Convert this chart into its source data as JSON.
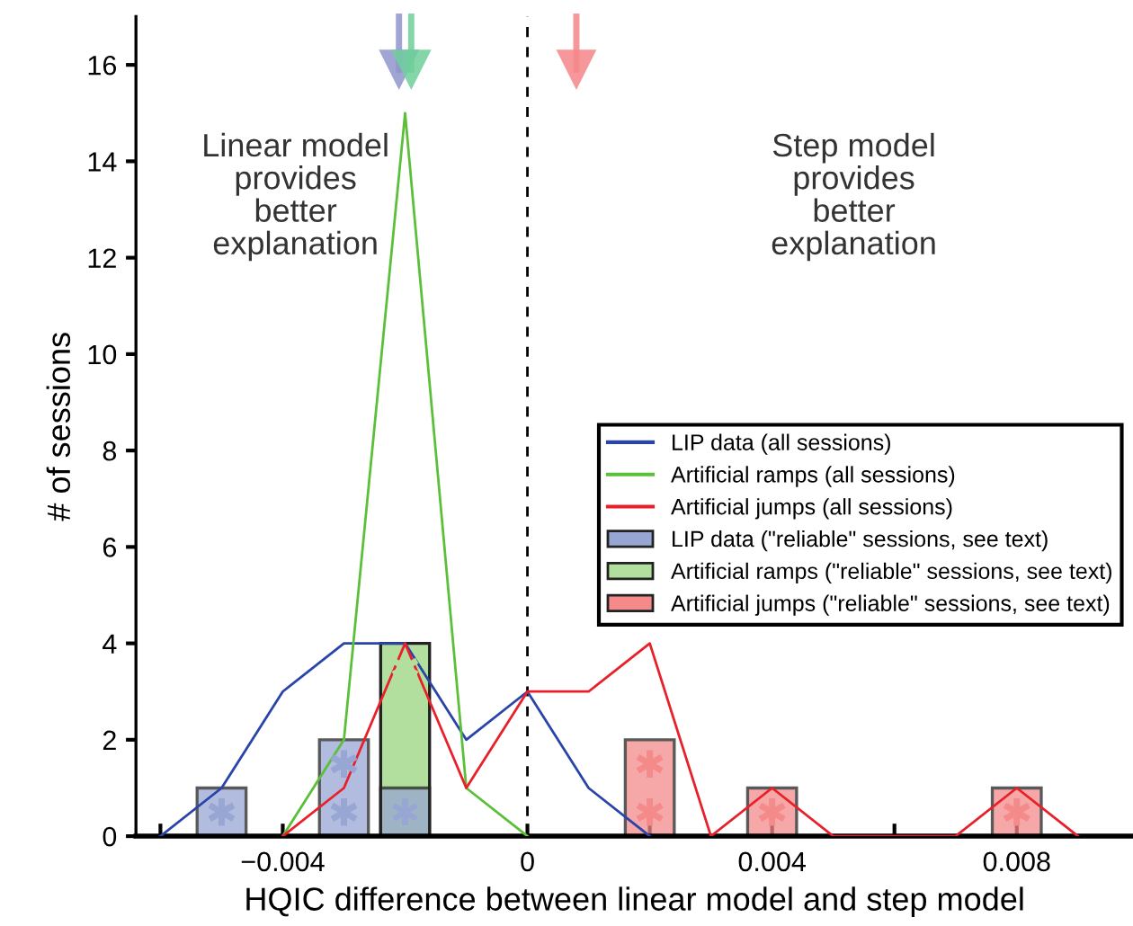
{
  "chart_data": {
    "type": "line",
    "xlabel": "HQIC difference between linear model and step model",
    "ylabel": "# of sessions",
    "xlim": [
      -0.0064,
      0.0099
    ],
    "ylim": [
      0,
      17
    ],
    "xticks": [
      {
        "value": -0.006,
        "label": null
      },
      {
        "value": -0.004,
        "label": "−0.004"
      },
      {
        "value": -0.002,
        "label": null
      },
      0,
      {
        "value": 0.002,
        "label": null
      },
      {
        "value": 0.004,
        "label": "0.004"
      },
      {
        "value": 0.006,
        "label": null
      },
      {
        "value": 0.008,
        "label": "0.008"
      }
    ],
    "yticks": [
      0,
      2,
      4,
      6,
      8,
      10,
      12,
      14,
      16
    ],
    "series": [
      {
        "name": "LIP data (all sessions)",
        "color": "#2a44a8",
        "x": [
          -0.006,
          -0.005,
          -0.004,
          -0.003,
          -0.002,
          -0.001,
          0,
          0.001,
          0.002
        ],
        "values": [
          0,
          1,
          3,
          4,
          4,
          2,
          3,
          1,
          0
        ]
      },
      {
        "name": "Artificial ramps (all sessions)",
        "color": "#5cbf3a",
        "x": [
          -0.004,
          -0.003,
          -0.002,
          -0.001,
          0
        ],
        "values": [
          0,
          2,
          15,
          1,
          0
        ]
      },
      {
        "name": "Artificial jumps (all sessions)",
        "color": "#e8202a",
        "x": [
          -0.004,
          -0.003,
          -0.002,
          -0.001,
          0,
          0.001,
          0.002,
          0.003,
          0.004,
          0.005,
          0.007,
          0.008,
          0.009
        ],
        "values": [
          0,
          1,
          4,
          1,
          3,
          3,
          4,
          0,
          1,
          0,
          0,
          1,
          0
        ]
      },
      {
        "name": "Artificial ramps (\"reliable\" sessions, see text)",
        "type": "bar",
        "color": "#b3df9e",
        "x": [
          -0.002
        ],
        "values": [
          4
        ]
      },
      {
        "name": "LIP data (\"reliable\" sessions, see text)",
        "type": "bar",
        "color": "#97a6d3",
        "x": [
          -0.005,
          -0.003,
          -0.002
        ],
        "values": [
          1,
          2,
          1
        ]
      },
      {
        "name": "Artificial jumps (\"reliable\" sessions, see text)",
        "type": "bar",
        "color": "#f48a8a",
        "x": [
          0.002,
          0.004,
          0.008
        ],
        "values": [
          2,
          1,
          1
        ]
      },
      {
        "type": "scatter",
        "marker": "triangle",
        "color": "#8f95cc",
        "x": [
          -0.0021
        ],
        "values": [
          15.9
        ]
      },
      {
        "type": "scatter",
        "marker": "triangle",
        "color": "#6fcf9a",
        "x": [
          -0.0019
        ],
        "values": [
          15.9
        ]
      },
      {
        "type": "scatter",
        "marker": "triangle",
        "color": "#f4868a",
        "x": [
          0.0008
        ],
        "values": [
          15.9
        ]
      }
    ],
    "ref_lines": [
      {
        "axis": "x",
        "value": 0,
        "color": "#000000",
        "line_style": "dashed"
      }
    ],
    "annotations": [
      "Linear model\nprovides\nbetter\nexplanation",
      "Step model\nprovides\nbetter\nexplanation"
    ],
    "legend": "right",
    "grid": false
  }
}
